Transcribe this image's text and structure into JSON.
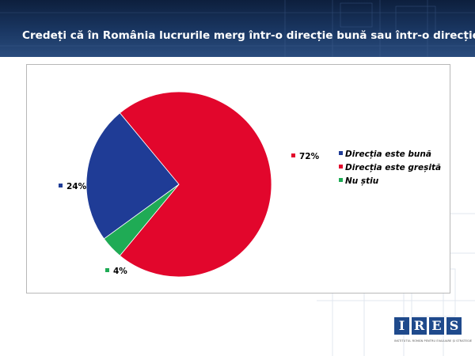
{
  "header": {
    "title": "Credeți că în România lucrurile merg într-o direcție bună sau într-o direcție greșită?"
  },
  "chart_data": {
    "type": "pie",
    "title": "Credeți că în România lucrurile merg într-o direcție bună sau într-o direcție greșită?",
    "slices": [
      {
        "name": "Direcția este bună",
        "value": 24,
        "label": "24%",
        "color": "#1f3c96"
      },
      {
        "name": "Direcția este greșită",
        "value": 72,
        "label": "72%",
        "color": "#e2062c"
      },
      {
        "name": "Nu știu",
        "value": 4,
        "label": "4%",
        "color": "#1fab55"
      }
    ],
    "legend_position": "right",
    "start_slice": "Direcția este greșită",
    "direction": "clockwise"
  },
  "logo": {
    "letters": [
      "I",
      "R",
      "E",
      "S"
    ],
    "tagline": "INSTITUTUL ROMÂN PENTRU EVALUARE ȘI STRATEGIE",
    "color": "#1f4a8c"
  }
}
